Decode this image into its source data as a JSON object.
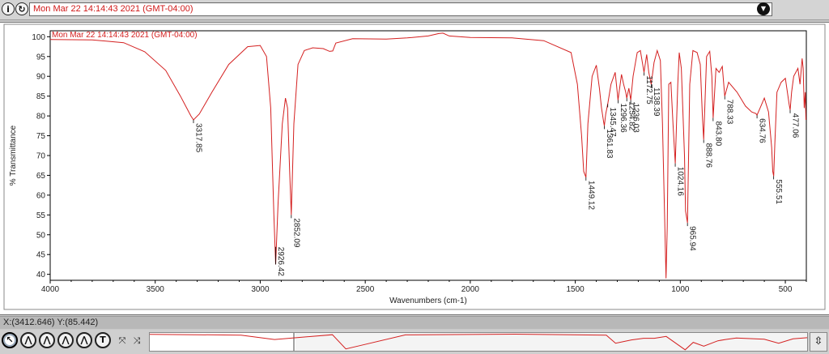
{
  "header": {
    "selected_spectrum": "Mon Mar 22 14:14:43 2021 (GMT-04:00)",
    "info_icon": "info-icon",
    "reload_icon": "reload-icon",
    "dropdown_icon": "chevron-down-icon"
  },
  "status": {
    "cursor_readout": "X:(3412.646) Y:(85.442)"
  },
  "toolbar": {
    "tools": [
      {
        "name": "pointer-tool",
        "glyph": "↖"
      },
      {
        "name": "region-tool",
        "glyph": "⋀"
      },
      {
        "name": "peak-tool",
        "glyph": "⋀"
      },
      {
        "name": "label-tool",
        "glyph": "⋀"
      },
      {
        "name": "baseline-tool",
        "glyph": "⋀"
      },
      {
        "name": "text-tool",
        "glyph": "T"
      }
    ],
    "pan_tools": [
      {
        "name": "expand-icon",
        "glyph": "⤧"
      },
      {
        "name": "fit-icon",
        "glyph": "⤨"
      }
    ],
    "scroll_glyph": "⇳"
  },
  "colors": {
    "trace": "#d42020",
    "axis": "#000000",
    "label": "#222222"
  },
  "chart_data": {
    "type": "line",
    "title": "",
    "legend_label": "Mon Mar 22 14:14:43 2021 (GMT-04:00)",
    "xlabel": "Wavenumbers (cm-1)",
    "ylabel": "% Transmittance",
    "xlim": [
      4000,
      400
    ],
    "ylim": [
      38.5,
      101.5
    ],
    "x_ticks": [
      4000,
      3500,
      3000,
      2500,
      2000,
      1500,
      1000,
      500
    ],
    "y_ticks": [
      100,
      95,
      90,
      85,
      80,
      75,
      70,
      65,
      60,
      55,
      50,
      45,
      40
    ],
    "grid": false,
    "series": [
      {
        "x": [
          4000,
          3800,
          3650,
          3550,
          3450,
          3380,
          3330,
          3317.85,
          3290,
          3230,
          3150,
          3060,
          3000,
          2970,
          2950,
          2935,
          2926.42,
          2915,
          2895,
          2880,
          2870,
          2860,
          2852.09,
          2840,
          2820,
          2790,
          2750,
          2700,
          2670,
          2655,
          2640,
          2560,
          2400,
          2300,
          2200,
          2150,
          2130,
          2100,
          2000,
          1800,
          1650,
          1520,
          1490,
          1470,
          1460,
          1449.12,
          1440,
          1420,
          1400,
          1385,
          1375,
          1365,
          1361.83,
          1355,
          1345.47,
          1330,
          1310,
          1296.36,
          1280,
          1270,
          1260,
          1254.82,
          1245,
          1236.03,
          1225,
          1205,
          1190,
          1172.75,
          1160,
          1150,
          1138.39,
          1125,
          1110,
          1095,
          1085,
          1075,
          1068,
          1062,
          1055,
          1045,
          1035,
          1024.16,
          1012,
          1005,
          995,
          980,
          975,
          965.94,
          955,
          940,
          920,
          905,
          895,
          888.76,
          875,
          860,
          850,
          843.8,
          830,
          815,
          800,
          788.33,
          770,
          730,
          690,
          660,
          640,
          634.76,
          620,
          600,
          580,
          565,
          560,
          555.51,
          550,
          540,
          520,
          500,
          490,
          482,
          477.06,
          470,
          460,
          440,
          430,
          420,
          415,
          410,
          405,
          402
        ],
        "y": [
          99.3,
          99.2,
          98.5,
          96.2,
          91.5,
          85.0,
          80.0,
          79.0,
          80.5,
          86.0,
          93.0,
          97.5,
          97.8,
          95.0,
          82.0,
          55.0,
          42.5,
          58.0,
          78.0,
          84.5,
          82.0,
          66.0,
          55.0,
          78.0,
          93.0,
          96.5,
          97.2,
          97.0,
          96.3,
          96.4,
          98.4,
          99.5,
          99.4,
          99.7,
          100.2,
          100.8,
          100.9,
          100.2,
          99.8,
          99.7,
          99.0,
          96.0,
          88.0,
          75.0,
          66.0,
          64.5,
          78.0,
          90.0,
          92.8,
          87.0,
          82.0,
          78.5,
          77.5,
          80.5,
          83.0,
          88.0,
          91.0,
          84.0,
          90.5,
          88.0,
          86.0,
          84.5,
          87.0,
          84.0,
          90.0,
          96.0,
          96.5,
          91.0,
          95.5,
          91.0,
          88.0,
          93.5,
          96.5,
          94.0,
          78.0,
          55.0,
          39.0,
          52.0,
          88.0,
          88.5,
          78.0,
          68.0,
          88.0,
          96.0,
          92.0,
          70.0,
          56.0,
          53.0,
          88.0,
          96.5,
          96.0,
          93.0,
          80.0,
          74.0,
          95.0,
          96.3,
          90.0,
          79.5,
          92.0,
          91.0,
          92.5,
          85.0,
          88.5,
          86.0,
          82.5,
          81.0,
          80.6,
          80.2,
          82.0,
          84.5,
          81.0,
          72.0,
          66.0,
          64.8,
          73.0,
          86.0,
          88.5,
          89.5,
          86.0,
          83.0,
          81.5,
          86.0,
          90.0,
          92.0,
          88.0,
          94.5,
          92.0,
          82.0,
          86.0,
          79.0
        ]
      }
    ],
    "peaks": [
      {
        "x": 3317.85,
        "y": 79.0,
        "label": "3317.85"
      },
      {
        "x": 2926.42,
        "y": 42.5,
        "label": "2926.42"
      },
      {
        "x": 2852.09,
        "y": 55.0,
        "label": "2852.09"
      },
      {
        "x": 1449.12,
        "y": 64.5,
        "label": "1449.12"
      },
      {
        "x": 1361.83,
        "y": 77.5,
        "label": "1361.83"
      },
      {
        "x": 1345.47,
        "y": 83.0,
        "label": "1345.47"
      },
      {
        "x": 1296.36,
        "y": 84.0,
        "label": "1296.36"
      },
      {
        "x": 1254.82,
        "y": 84.5,
        "label": "1254.82"
      },
      {
        "x": 1236.03,
        "y": 84.0,
        "label": "1236.03"
      },
      {
        "x": 1172.75,
        "y": 91.0,
        "label": "1172.75"
      },
      {
        "x": 1138.39,
        "y": 88.0,
        "label": "1138.39"
      },
      {
        "x": 1024.16,
        "y": 68.0,
        "label": "1024.16"
      },
      {
        "x": 965.94,
        "y": 53.0,
        "label": "965.94"
      },
      {
        "x": 888.76,
        "y": 74.0,
        "label": "888.76"
      },
      {
        "x": 843.8,
        "y": 79.5,
        "label": "843.80"
      },
      {
        "x": 788.33,
        "y": 85.0,
        "label": "788.33"
      },
      {
        "x": 634.76,
        "y": 80.2,
        "label": "634.76"
      },
      {
        "x": 555.51,
        "y": 64.8,
        "label": "555.51"
      },
      {
        "x": 477.06,
        "y": 81.5,
        "label": "477.06"
      }
    ]
  },
  "overview_data": {
    "x": [
      4000,
      3500,
      3317,
      3000,
      2926,
      2852,
      2600,
      2000,
      1500,
      1449,
      1362,
      1296,
      1237,
      1172,
      1068,
      1024,
      966,
      889,
      844,
      788,
      635,
      556,
      477,
      400
    ],
    "y": [
      99.3,
      96.0,
      79.0,
      97.8,
      42.5,
      55.0,
      97.0,
      99.8,
      96.0,
      64.5,
      77.5,
      84.0,
      84.0,
      91.0,
      39.0,
      68.0,
      53.0,
      74.0,
      79.5,
      85.0,
      80.2,
      64.8,
      81.5,
      86.0
    ],
    "xlim": [
      4000,
      400
    ],
    "ylim": [
      38.5,
      101.5
    ],
    "window_xlim": [
      4000,
      400
    ]
  }
}
